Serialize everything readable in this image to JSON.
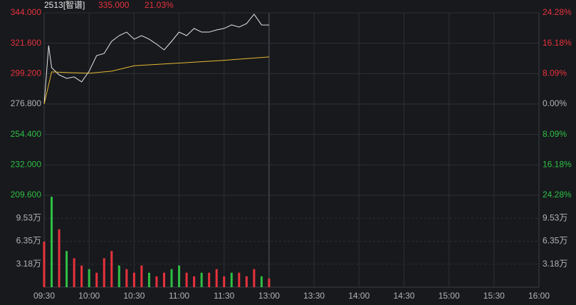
{
  "header": {
    "name": "2513[智谱]",
    "last": {
      "value": 335,
      "label": "335.000"
    },
    "change": {
      "value": 21.03,
      "label": "21.03%"
    }
  },
  "chart_data": [
    {
      "type": "line",
      "ylim": [
        209.6,
        344
      ],
      "yticks": [
        {
          "value": 344,
          "label": "344.000"
        },
        {
          "value": 321.6,
          "label": "321.600"
        },
        {
          "value": 299.2,
          "label": "299.200"
        },
        {
          "value": 276.8,
          "label": "276.800"
        },
        {
          "value": 254.4,
          "label": "254.400"
        },
        {
          "value": 232,
          "label": "232.000"
        },
        {
          "value": 209.6,
          "label": "209.600"
        }
      ],
      "y2lim": [
        -24.28,
        24.28
      ],
      "y2ticks": [
        {
          "value": 24.28,
          "label": "24.28%"
        },
        {
          "value": 16.18,
          "label": "16.18%"
        },
        {
          "value": 8.09,
          "label": "8.09%"
        },
        {
          "value": 0,
          "label": "0.00%"
        },
        {
          "value": -8.09,
          "label": "8.09%"
        },
        {
          "value": -16.18,
          "label": "16.18%"
        },
        {
          "value": -24.28,
          "label": "24.28%"
        }
      ],
      "up_color": "#e8323c",
      "down_color": "#2fbf44",
      "flat_color": "#b0b3b8",
      "series": [
        {
          "color": "#e6e6e6",
          "x": [
            "09:30",
            "09:33",
            "09:35",
            "09:40",
            "09:45",
            "09:50",
            "09:55",
            "10:00",
            "10:05",
            "10:10",
            "10:15",
            "10:20",
            "10:25",
            "10:30",
            "10:35",
            "10:40",
            "10:45",
            "10:50",
            "10:55",
            "11:00",
            "11:05",
            "11:10",
            "11:15",
            "11:20",
            "11:25",
            "11:30",
            "11:35",
            "11:40",
            "11:45",
            "11:50",
            "11:55",
            "12:00"
          ],
          "values": [
            276.8,
            319.9,
            303.6,
            298.3,
            295.7,
            296.8,
            293.1,
            301,
            312.5,
            314.1,
            323,
            327.2,
            329.8,
            324.6,
            327.2,
            324.6,
            320.9,
            316.7,
            323,
            329.8,
            327.2,
            332.5,
            329.8,
            329.8,
            331.4,
            332.5,
            335.1,
            333.5,
            336.1,
            343,
            335.1,
            335
          ]
        },
        {
          "color": "#e8b830",
          "x": [
            "09:30",
            "09:35",
            "09:45",
            "10:00",
            "10:15",
            "10:30",
            "11:00",
            "11:30",
            "12:00"
          ],
          "values": [
            276.8,
            300.5,
            300,
            299.5,
            301,
            305,
            307,
            309,
            311.5
          ]
        }
      ]
    },
    {
      "type": "bar",
      "categories": [
        "09:30",
        "10:00",
        "10:30",
        "11:00",
        "11:30",
        "13:00",
        "13:30",
        "14:00",
        "14:30",
        "15:00",
        "15:30",
        "16:00"
      ],
      "ylim": [
        0,
        12.71
      ],
      "yticks": [
        {
          "value": 9.53,
          "label": "9.53万"
        },
        {
          "value": 6.35,
          "label": "6.35万"
        },
        {
          "value": 3.18,
          "label": "3.18万"
        }
      ],
      "x": [
        "09:30",
        "09:35",
        "09:40",
        "09:45",
        "09:50",
        "09:55",
        "10:00",
        "10:05",
        "10:10",
        "10:15",
        "10:20",
        "10:25",
        "10:30",
        "10:35",
        "10:40",
        "10:45",
        "10:50",
        "10:55",
        "11:00",
        "11:05",
        "11:10",
        "11:15",
        "11:20",
        "11:25",
        "11:30",
        "11:35",
        "11:40",
        "11:45",
        "11:50",
        "11:55",
        "12:00"
      ],
      "values": [
        6.3,
        12.5,
        8,
        5,
        4,
        3,
        2.5,
        2,
        4,
        5,
        3,
        2.5,
        2,
        3,
        2,
        1.5,
        2,
        2.5,
        3,
        2,
        1.5,
        2,
        2,
        2.5,
        1.5,
        2,
        2,
        1.5,
        2.5,
        1.5,
        1.2
      ],
      "colors": [
        "#e8323c",
        "#2fbf44",
        "#e8323c",
        "#2fbf44",
        "#e8323c",
        "#e8323c",
        "#2fbf44",
        "#e8323c",
        "#e8323c",
        "#e8323c",
        "#2fbf44",
        "#e8323c",
        "#e8323c",
        "#e8323c",
        "#2fbf44",
        "#e8323c",
        "#e8323c",
        "#2fbf44",
        "#2fbf44",
        "#e8323c",
        "#e8323c",
        "#2fbf44",
        "#e8323c",
        "#e8323c",
        "#e8323c",
        "#2fbf44",
        "#e8323c",
        "#e8323c",
        "#e8323c",
        "#2fbf44",
        "#e8323c"
      ]
    }
  ]
}
